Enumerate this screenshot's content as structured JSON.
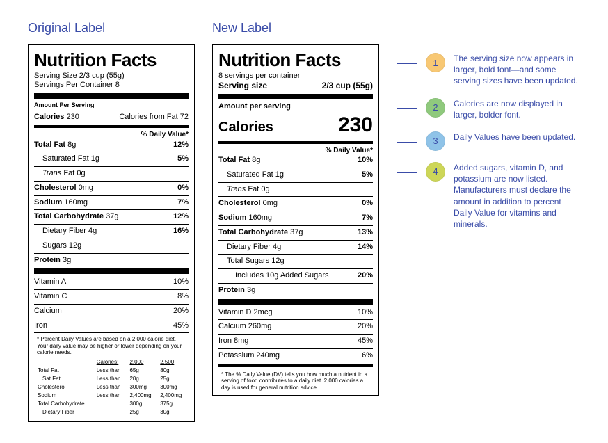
{
  "titles": {
    "original": "Original Label",
    "new": "New Label"
  },
  "nf_heading": "Nutrition Facts",
  "original": {
    "serving_size_line": "Serving Size 2/3 cup (55g)",
    "servings_per_line": "Servings Per Container 8",
    "amount_per_serving": "Amount Per Serving",
    "calories_label": "Calories",
    "calories_val": "230",
    "cal_from_fat": "Calories from Fat 72",
    "dv_head": "% Daily Value*",
    "rows": [
      {
        "n": "Total Fat",
        "a": "8g",
        "dv": "12%",
        "bold": true
      },
      {
        "n": "Saturated Fat",
        "a": "1g",
        "dv": "5%",
        "indent": 1
      },
      {
        "n": "Trans Fat",
        "a": "0g",
        "italicName": true,
        "indent": 1
      },
      {
        "n": "Cholesterol",
        "a": "0mg",
        "dv": "0%",
        "bold": true
      },
      {
        "n": "Sodium",
        "a": "160mg",
        "dv": "7%",
        "bold": true
      },
      {
        "n": "Total Carbohydrate",
        "a": "37g",
        "dv": "12%",
        "bold": true
      },
      {
        "n": "Dietary Fiber",
        "a": "4g",
        "dv": "16%",
        "indent": 1
      },
      {
        "n": "Sugars",
        "a": "12g",
        "indent": 1
      },
      {
        "n": "Protein",
        "a": "3g",
        "bold": true
      }
    ],
    "vitamins": [
      {
        "n": "Vitamin A",
        "dv": "10%"
      },
      {
        "n": "Vitamin C",
        "dv": "8%"
      },
      {
        "n": "Calcium",
        "dv": "20%"
      },
      {
        "n": "Iron",
        "dv": "45%"
      }
    ],
    "footnote": "* Percent Daily Values are based on a 2,000 calorie diet. Your daily value may be higher or lower depending on your calorie needs.",
    "ref_head": [
      "",
      "Calories:",
      "2,000",
      "2,500"
    ],
    "ref_rows": [
      [
        "Total Fat",
        "Less than",
        "65g",
        "80g"
      ],
      [
        "Sat Fat",
        "Less than",
        "20g",
        "25g",
        true
      ],
      [
        "Cholesterol",
        "Less than",
        "300mg",
        "300mg"
      ],
      [
        "Sodium",
        "Less than",
        "2,400mg",
        "2,400mg"
      ],
      [
        "Total Carbohydrate",
        "",
        "300g",
        "375g"
      ],
      [
        "Dietary Fiber",
        "",
        "25g",
        "30g",
        true
      ]
    ]
  },
  "newlabel": {
    "servings_per": "8 servings per container",
    "serving_size_label": "Serving size",
    "serving_size_val": "2/3 cup (55g)",
    "amount_per_serving": "Amount per serving",
    "calories_label": "Calories",
    "calories_val": "230",
    "dv_head": "% Daily Value*",
    "rows": [
      {
        "n": "Total Fat",
        "a": "8g",
        "dv": "10%",
        "bold": true
      },
      {
        "n": "Saturated Fat",
        "a": "1g",
        "dv": "5%",
        "indent": 1
      },
      {
        "n": "Trans Fat",
        "a": "0g",
        "italicName": true,
        "indent": 1
      },
      {
        "n": "Cholesterol",
        "a": "0mg",
        "dv": "0%",
        "bold": true
      },
      {
        "n": "Sodium",
        "a": "160mg",
        "dv": "7%",
        "bold": true
      },
      {
        "n": "Total Carbohydrate",
        "a": "37g",
        "dv": "13%",
        "bold": true
      },
      {
        "n": "Dietary Fiber",
        "a": "4g",
        "dv": "14%",
        "indent": 1
      },
      {
        "n": "Total Sugars",
        "a": "12g",
        "indent": 1
      },
      {
        "n": "Includes 10g Added Sugars",
        "a": "",
        "dv": "20%",
        "indent": 2
      },
      {
        "n": "Protein",
        "a": "3g",
        "bold": true
      }
    ],
    "vitamins": [
      {
        "n": "Vitamin D 2mcg",
        "dv": "10%"
      },
      {
        "n": "Calcium 260mg",
        "dv": "20%"
      },
      {
        "n": "Iron 8mg",
        "dv": "45%"
      },
      {
        "n": "Potassium 240mg",
        "dv": "6%"
      }
    ],
    "footnote": "* The % Daily Value (DV) tells you how much a nutrient in a serving of food contributes to a daily diet. 2,000 calories a day is used for general nutrition advice."
  },
  "callouts": [
    {
      "num": "1",
      "color": "#f8c874",
      "text": "The serving size now appears in larger, bold font—and some serving sizes have been updated."
    },
    {
      "num": "2",
      "color": "#8fc97d",
      "text": "Calories are now displayed in larger, bolder font."
    },
    {
      "num": "3",
      "color": "#8fc3e8",
      "text": "Daily Values have been updated."
    },
    {
      "num": "4",
      "color": "#cdd658",
      "text": "Added sugars, vitamin D, and potassium are now listed. Manufacturers must declare the amount in addition to percent Daily Value for vitamins and minerals."
    }
  ],
  "colors": {
    "brand": "#3a4ca8"
  }
}
